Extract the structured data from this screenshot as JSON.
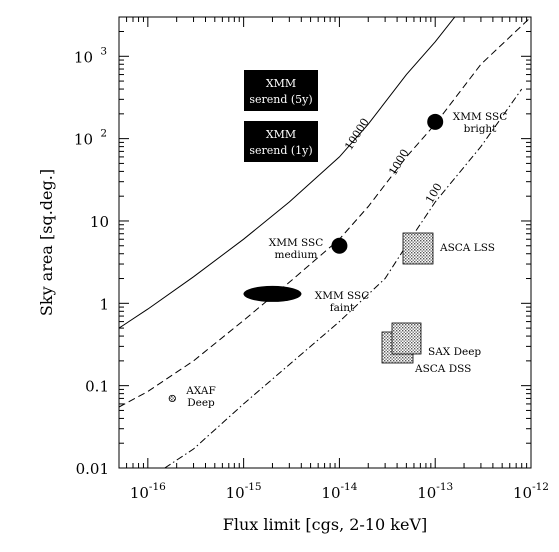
{
  "chart_data": {
    "type": "line",
    "title": "",
    "xlabel": "Flux limit [cgs, 2-10 keV]",
    "ylabel": "Sky area [sq.deg.]",
    "xscale": "log",
    "yscale": "log",
    "xlim": [
      5e-17,
      1e-12
    ],
    "ylim": [
      0.01,
      3000
    ],
    "grid": false,
    "x_ticks": [
      {
        "value": 1e-16,
        "base": "10",
        "exp": "-16"
      },
      {
        "value": 1e-15,
        "base": "10",
        "exp": "-15"
      },
      {
        "value": 1e-14,
        "base": "10",
        "exp": "-14"
      },
      {
        "value": 1e-13,
        "base": "10",
        "exp": "-13"
      },
      {
        "value": 1e-12,
        "base": "10",
        "exp": "-12"
      }
    ],
    "y_ticks": [
      {
        "value": 0.01,
        "base": "0.01",
        "exp": ""
      },
      {
        "value": 0.1,
        "base": "0.1",
        "exp": ""
      },
      {
        "value": 1,
        "base": "1",
        "exp": ""
      },
      {
        "value": 10,
        "base": "10",
        "exp": ""
      },
      {
        "value": 100,
        "base": "10",
        "exp": "2"
      },
      {
        "value": 1000,
        "base": "10",
        "exp": "3"
      }
    ],
    "series": [
      {
        "label": "10000",
        "style": "solid",
        "points": [
          [
            5e-17,
            0.5
          ],
          [
            1e-16,
            0.85
          ],
          [
            3e-16,
            2.1
          ],
          [
            1e-15,
            6
          ],
          [
            3e-15,
            17
          ],
          [
            1e-14,
            60
          ],
          [
            2e-14,
            150
          ],
          [
            5e-14,
            600
          ],
          [
            1e-13,
            1500
          ],
          [
            1.6e-13,
            3000
          ]
        ]
      },
      {
        "label": "1000",
        "style": "dashed",
        "points": [
          [
            5e-17,
            0.055
          ],
          [
            1e-16,
            0.085
          ],
          [
            3e-16,
            0.2
          ],
          [
            1e-15,
            0.62
          ],
          [
            3e-15,
            1.8
          ],
          [
            1e-14,
            6
          ],
          [
            2e-14,
            15
          ],
          [
            5e-14,
            60
          ],
          [
            1e-13,
            150
          ],
          [
            3e-13,
            800
          ],
          [
            1e-12,
            3000
          ]
        ]
      },
      {
        "label": "100",
        "style": "dashdot",
        "points": [
          [
            1.5e-16,
            0.01
          ],
          [
            3e-16,
            0.017
          ],
          [
            1e-15,
            0.06
          ],
          [
            3e-15,
            0.18
          ],
          [
            1e-14,
            0.6
          ],
          [
            3e-14,
            2
          ],
          [
            6e-14,
            7
          ],
          [
            1e-13,
            17
          ],
          [
            3e-13,
            80
          ],
          [
            8e-13,
            400
          ]
        ]
      }
    ],
    "boxes": [
      {
        "text1": "XMM",
        "text2": "serend (5y)"
      },
      {
        "text1": "XMM",
        "text2": "serend (1y)"
      }
    ],
    "surveys": [
      {
        "name": "XMM SSC bright",
        "line1": "XMM SSC",
        "line2": "bright",
        "flux": 1e-13,
        "area": 160,
        "marker": "circle"
      },
      {
        "name": "XMM SSC medium",
        "line1": "XMM SSC",
        "line2": "medium",
        "flux": 1e-14,
        "area": 5,
        "marker": "circle"
      },
      {
        "name": "XMM SSC faint",
        "line1": "XMM SSC",
        "line2": "faint",
        "flux": 2e-15,
        "area": 1.3,
        "marker": "ellipse"
      },
      {
        "name": "AXAF Deep",
        "line1": "AXAF",
        "line2": "Deep",
        "flux": 1.8e-16,
        "area": 0.07,
        "marker": "small-circle"
      },
      {
        "name": "ASCA LSS",
        "line1": "ASCA LSS",
        "line2": "",
        "flux": 6e-14,
        "area": 5,
        "marker": "hatched-square"
      },
      {
        "name": "SAX Deep",
        "line1": "SAX Deep",
        "line2": "",
        "flux": 4.5e-14,
        "area": 0.4,
        "marker": "hatched-square"
      },
      {
        "name": "ASCA DSS",
        "line1": "ASCA DSS",
        "line2": "",
        "flux": 3.5e-14,
        "area": 0.28,
        "marker": "hatched-square"
      }
    ]
  }
}
